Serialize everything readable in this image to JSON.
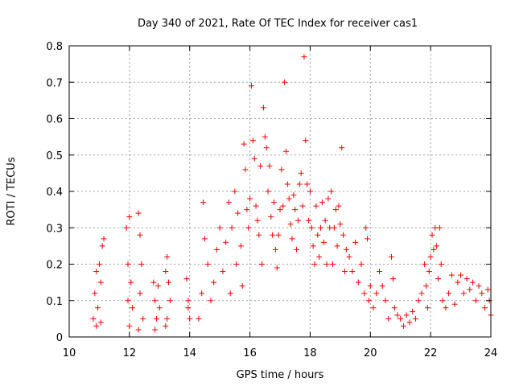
{
  "chart_data": {
    "type": "scatter",
    "title": "Day 340 of 2021, Rate Of TEC Index for receiver cas1",
    "xlabel": "GPS time / hours",
    "ylabel": "ROTI / TECUs",
    "xlim": [
      10,
      24
    ],
    "ylim": [
      0,
      0.8
    ],
    "xticks": [
      "10",
      "12",
      "14",
      "16",
      "18",
      "20",
      "22",
      "24"
    ],
    "yticks": [
      "0",
      "0.1",
      "0.2",
      "0.3",
      "0.4",
      "0.5",
      "0.6",
      "0.7",
      "0.8"
    ],
    "grid": true,
    "marker": "+",
    "color": "#ff0000",
    "series": [
      {
        "points": [
          [
            10.8,
            0.05
          ],
          [
            10.85,
            0.12
          ],
          [
            10.9,
            0.18
          ],
          [
            10.95,
            0.08
          ],
          [
            11.0,
            0.2
          ],
          [
            11.05,
            0.15
          ],
          [
            11.1,
            0.25
          ],
          [
            11.15,
            0.27
          ],
          [
            11.05,
            0.04
          ],
          [
            10.9,
            0.03
          ],
          [
            11.9,
            0.3
          ],
          [
            11.95,
            0.2
          ],
          [
            12.0,
            0.33
          ],
          [
            12.05,
            0.15
          ],
          [
            12.1,
            0.08
          ],
          [
            12.0,
            0.03
          ],
          [
            11.95,
            0.1
          ],
          [
            12.3,
            0.34
          ],
          [
            12.35,
            0.28
          ],
          [
            12.4,
            0.2
          ],
          [
            12.35,
            0.12
          ],
          [
            12.45,
            0.05
          ],
          [
            12.3,
            0.02
          ],
          [
            12.8,
            0.15
          ],
          [
            12.85,
            0.1
          ],
          [
            12.9,
            0.05
          ],
          [
            12.95,
            0.14
          ],
          [
            13.0,
            0.08
          ],
          [
            12.85,
            0.02
          ],
          [
            13.2,
            0.18
          ],
          [
            13.25,
            0.22
          ],
          [
            13.3,
            0.15
          ],
          [
            13.35,
            0.1
          ],
          [
            13.25,
            0.05
          ],
          [
            13.2,
            0.03
          ],
          [
            13.9,
            0.16
          ],
          [
            13.95,
            0.1
          ],
          [
            14.0,
            0.05
          ],
          [
            13.95,
            0.08
          ],
          [
            14.3,
            0.05
          ],
          [
            14.4,
            0.12
          ],
          [
            14.45,
            0.37
          ],
          [
            14.5,
            0.27
          ],
          [
            14.6,
            0.2
          ],
          [
            14.7,
            0.1
          ],
          [
            14.8,
            0.15
          ],
          [
            14.9,
            0.24
          ],
          [
            15.0,
            0.3
          ],
          [
            15.1,
            0.18
          ],
          [
            15.2,
            0.26
          ],
          [
            15.3,
            0.37
          ],
          [
            15.35,
            0.12
          ],
          [
            15.4,
            0.3
          ],
          [
            15.5,
            0.4
          ],
          [
            15.55,
            0.2
          ],
          [
            15.6,
            0.34
          ],
          [
            15.7,
            0.25
          ],
          [
            15.75,
            0.14
          ],
          [
            15.8,
            0.53
          ],
          [
            15.85,
            0.46
          ],
          [
            15.9,
            0.35
          ],
          [
            15.95,
            0.3
          ],
          [
            16.0,
            0.38
          ],
          [
            16.05,
            0.69
          ],
          [
            16.1,
            0.54
          ],
          [
            16.15,
            0.49
          ],
          [
            16.2,
            0.36
          ],
          [
            16.25,
            0.32
          ],
          [
            16.3,
            0.28
          ],
          [
            16.35,
            0.47
          ],
          [
            16.4,
            0.2
          ],
          [
            16.45,
            0.63
          ],
          [
            16.5,
            0.55
          ],
          [
            16.55,
            0.52
          ],
          [
            16.6,
            0.4
          ],
          [
            16.65,
            0.47
          ],
          [
            16.7,
            0.33
          ],
          [
            16.75,
            0.28
          ],
          [
            16.8,
            0.37
          ],
          [
            16.85,
            0.24
          ],
          [
            16.9,
            0.19
          ],
          [
            16.95,
            0.28
          ],
          [
            17.0,
            0.35
          ],
          [
            17.05,
            0.46
          ],
          [
            17.1,
            0.36
          ],
          [
            17.15,
            0.7
          ],
          [
            17.2,
            0.51
          ],
          [
            17.25,
            0.42
          ],
          [
            17.3,
            0.38
          ],
          [
            17.35,
            0.31
          ],
          [
            17.4,
            0.27
          ],
          [
            17.45,
            0.39
          ],
          [
            17.5,
            0.35
          ],
          [
            17.55,
            0.24
          ],
          [
            17.6,
            0.32
          ],
          [
            17.65,
            0.42
          ],
          [
            17.7,
            0.45
          ],
          [
            17.75,
            0.36
          ],
          [
            17.8,
            0.77
          ],
          [
            17.85,
            0.54
          ],
          [
            17.9,
            0.42
          ],
          [
            17.95,
            0.32
          ],
          [
            18.0,
            0.4
          ],
          [
            18.05,
            0.3
          ],
          [
            18.1,
            0.25
          ],
          [
            18.15,
            0.2
          ],
          [
            18.2,
            0.36
          ],
          [
            18.25,
            0.28
          ],
          [
            18.3,
            0.22
          ],
          [
            18.35,
            0.3
          ],
          [
            18.4,
            0.37
          ],
          [
            18.45,
            0.26
          ],
          [
            18.5,
            0.32
          ],
          [
            18.55,
            0.2
          ],
          [
            18.6,
            0.38
          ],
          [
            18.65,
            0.3
          ],
          [
            18.7,
            0.4
          ],
          [
            18.75,
            0.2
          ],
          [
            18.8,
            0.3
          ],
          [
            18.85,
            0.35
          ],
          [
            18.9,
            0.25
          ],
          [
            18.95,
            0.36
          ],
          [
            19.0,
            0.31
          ],
          [
            19.05,
            0.52
          ],
          [
            19.1,
            0.28
          ],
          [
            19.15,
            0.18
          ],
          [
            19.2,
            0.24
          ],
          [
            19.3,
            0.22
          ],
          [
            19.4,
            0.18
          ],
          [
            19.5,
            0.26
          ],
          [
            19.6,
            0.15
          ],
          [
            19.7,
            0.2
          ],
          [
            19.8,
            0.12
          ],
          [
            19.85,
            0.3
          ],
          [
            19.9,
            0.27
          ],
          [
            19.95,
            0.1
          ],
          [
            20.0,
            0.14
          ],
          [
            20.1,
            0.08
          ],
          [
            20.2,
            0.12
          ],
          [
            20.3,
            0.18
          ],
          [
            20.4,
            0.14
          ],
          [
            20.5,
            0.1
          ],
          [
            20.6,
            0.05
          ],
          [
            20.7,
            0.22
          ],
          [
            20.75,
            0.16
          ],
          [
            20.8,
            0.08
          ],
          [
            20.9,
            0.06
          ],
          [
            21.0,
            0.05
          ],
          [
            21.1,
            0.03
          ],
          [
            21.2,
            0.06
          ],
          [
            21.3,
            0.04
          ],
          [
            21.4,
            0.07
          ],
          [
            21.5,
            0.05
          ],
          [
            21.6,
            0.1
          ],
          [
            21.7,
            0.12
          ],
          [
            21.8,
            0.2
          ],
          [
            21.85,
            0.14
          ],
          [
            21.9,
            0.08
          ],
          [
            21.95,
            0.18
          ],
          [
            22.0,
            0.22
          ],
          [
            22.05,
            0.28
          ],
          [
            22.1,
            0.24
          ],
          [
            22.15,
            0.3
          ],
          [
            22.2,
            0.25
          ],
          [
            22.25,
            0.16
          ],
          [
            22.3,
            0.3
          ],
          [
            22.35,
            0.2
          ],
          [
            22.4,
            0.1
          ],
          [
            22.5,
            0.08
          ],
          [
            22.6,
            0.12
          ],
          [
            22.7,
            0.17
          ],
          [
            22.8,
            0.09
          ],
          [
            22.9,
            0.15
          ],
          [
            23.0,
            0.17
          ],
          [
            23.1,
            0.12
          ],
          [
            23.2,
            0.16
          ],
          [
            23.3,
            0.13
          ],
          [
            23.4,
            0.15
          ],
          [
            23.5,
            0.1
          ],
          [
            23.6,
            0.14
          ],
          [
            23.7,
            0.12
          ],
          [
            23.8,
            0.08
          ],
          [
            23.9,
            0.13
          ],
          [
            23.95,
            0.1
          ],
          [
            24.0,
            0.06
          ]
        ]
      }
    ]
  }
}
